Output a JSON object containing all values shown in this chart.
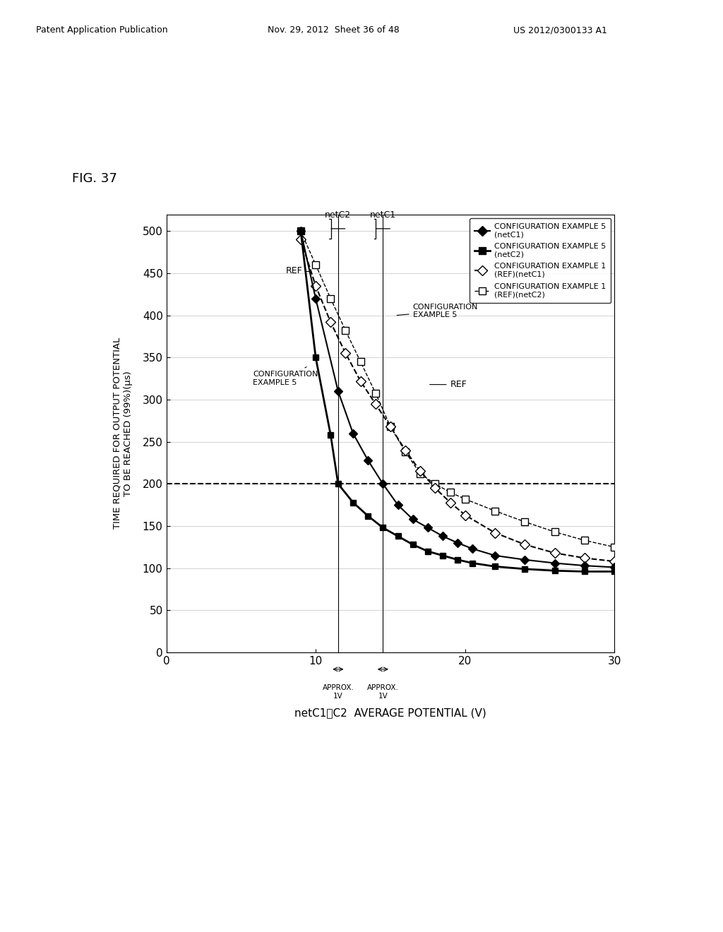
{
  "title": "FIG. 37",
  "xlabel": "netC1、C2  AVERAGE POTENTIAL (V)",
  "ylabel": "TIME REQUIRED FOR OUTPUT POTENTIAL\nTO BE REACHED (99%)(μs)",
  "xlim": [
    0,
    30
  ],
  "ylim": [
    0,
    520
  ],
  "xticks": [
    0,
    10,
    20,
    30
  ],
  "yticks": [
    0,
    50,
    100,
    150,
    200,
    250,
    300,
    350,
    400,
    450,
    500
  ],
  "hline_y": 200,
  "netC2_x": 11.5,
  "netC1_x": 14.5,
  "series": {
    "cfg5_netC1": {
      "x": [
        9.0,
        10.0,
        11.5,
        12.5,
        13.5,
        14.5,
        15.5,
        16.5,
        17.5,
        18.5,
        19.5,
        20.5,
        22.0,
        24.0,
        26.0,
        28.0,
        30.0
      ],
      "y": [
        500,
        420,
        310,
        260,
        228,
        200,
        175,
        158,
        148,
        138,
        130,
        123,
        115,
        110,
        106,
        103,
        101
      ],
      "marker": "D",
      "markerfacecolor": "black",
      "markersize": 6,
      "linestyle": "-",
      "color": "black",
      "linewidth": 1.5
    },
    "cfg5_netC2": {
      "x": [
        9.0,
        10.0,
        11.0,
        11.5,
        12.5,
        13.5,
        14.5,
        15.5,
        16.5,
        17.5,
        18.5,
        19.5,
        20.5,
        22.0,
        24.0,
        26.0,
        28.0,
        30.0
      ],
      "y": [
        500,
        350,
        258,
        200,
        178,
        162,
        148,
        138,
        128,
        120,
        115,
        110,
        106,
        102,
        99,
        97,
        96,
        96
      ],
      "marker": "s",
      "markerfacecolor": "black",
      "markersize": 6,
      "linestyle": "-",
      "color": "black",
      "linewidth": 2.0
    },
    "ref_netC1": {
      "x": [
        9.0,
        10.0,
        11.0,
        12.0,
        13.0,
        14.0,
        15.0,
        16.0,
        17.0,
        18.0,
        19.0,
        20.0,
        22.0,
        24.0,
        26.0,
        28.0,
        30.0
      ],
      "y": [
        490,
        435,
        392,
        355,
        322,
        295,
        268,
        240,
        215,
        195,
        178,
        163,
        142,
        128,
        118,
        112,
        108
      ],
      "marker": "D",
      "markerfacecolor": "white",
      "markersize": 7,
      "linestyle": "--",
      "color": "black",
      "linewidth": 1.5
    },
    "ref_netC2": {
      "x": [
        9.0,
        10.0,
        11.0,
        12.0,
        13.0,
        14.0,
        15.0,
        16.0,
        17.0,
        18.0,
        19.0,
        20.0,
        22.0,
        24.0,
        26.0,
        28.0,
        30.0
      ],
      "y": [
        500,
        460,
        420,
        382,
        345,
        308,
        268,
        238,
        212,
        200,
        190,
        182,
        168,
        155,
        143,
        133,
        125
      ],
      "marker": "s",
      "markerfacecolor": "white",
      "markersize": 7,
      "linestyle": "--",
      "color": "black",
      "linewidth": 1.0
    }
  },
  "background_color": "#ffffff",
  "grid_color": "#999999",
  "header_left": "Patent Application Publication",
  "header_mid": "Nov. 29, 2012  Sheet 36 of 48",
  "header_right": "US 2012/0300133 A1"
}
